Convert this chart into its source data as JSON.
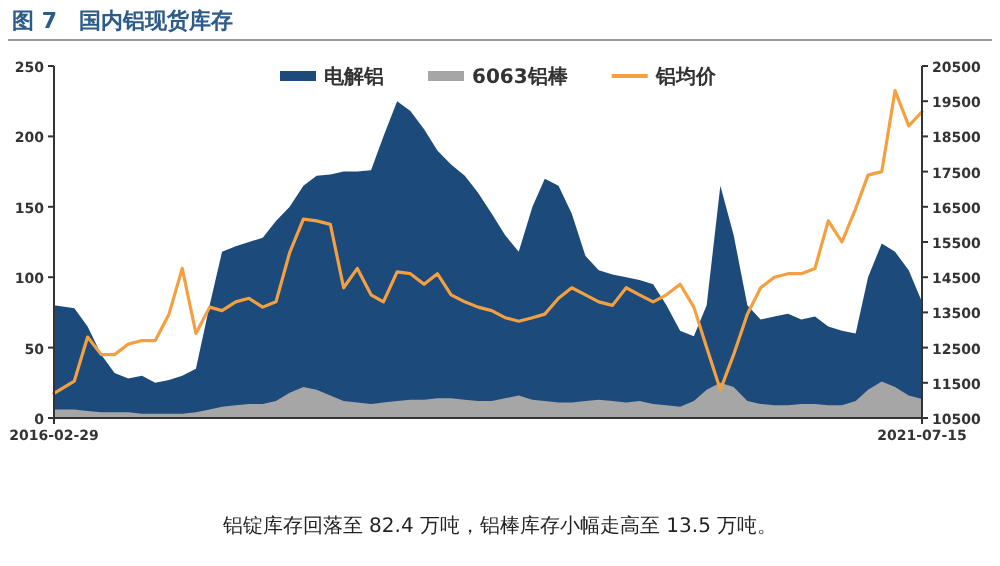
{
  "chart_data": {
    "type": "area",
    "title": "图 7　国内铝现货库存",
    "annotations": [
      "铝锭库存回落至 82.4 万吨，铝棒库存小幅走高至 13.5 万吨。"
    ],
    "x": [
      "2016-02-29",
      "2016-04-15",
      "2016-05-15",
      "2016-06-15",
      "2016-07-15",
      "2016-08-15",
      "2016-09-15",
      "2016-10-15",
      "2016-11-15",
      "2016-12-15",
      "2017-01-15",
      "2017-02-15",
      "2017-03-15",
      "2017-04-15",
      "2017-05-15",
      "2017-06-15",
      "2017-07-15",
      "2017-08-15",
      "2017-09-15",
      "2017-10-15",
      "2017-11-15",
      "2017-12-15",
      "2018-01-15",
      "2018-02-15",
      "2018-03-15",
      "2018-04-15",
      "2018-05-15",
      "2018-06-15",
      "2018-07-15",
      "2018-08-15",
      "2018-09-15",
      "2018-10-15",
      "2018-11-15",
      "2018-12-15",
      "2019-01-15",
      "2019-02-15",
      "2019-03-15",
      "2019-04-15",
      "2019-05-15",
      "2019-06-15",
      "2019-07-15",
      "2019-08-15",
      "2019-09-15",
      "2019-10-15",
      "2019-11-15",
      "2019-12-15",
      "2020-01-15",
      "2020-02-15",
      "2020-03-15",
      "2020-04-15",
      "2020-05-15",
      "2020-06-15",
      "2020-07-15",
      "2020-08-15",
      "2020-09-15",
      "2020-10-15",
      "2020-11-15",
      "2020-12-15",
      "2021-01-15",
      "2021-02-15",
      "2021-03-15",
      "2021-04-15",
      "2021-05-15",
      "2021-06-15",
      "2021-07-15"
    ],
    "series": [
      {
        "name": "电解铝",
        "color": "#1c4a7a",
        "values": [
          80,
          78,
          65,
          45,
          32,
          28,
          30,
          25,
          27,
          30,
          35,
          80,
          118,
          122,
          125,
          128,
          140,
          150,
          165,
          172,
          173,
          175,
          175,
          176,
          200,
          225,
          218,
          205,
          190,
          180,
          172,
          160,
          145,
          130,
          118,
          150,
          170,
          165,
          145,
          115,
          105,
          102,
          100,
          98,
          95,
          80,
          62,
          58,
          80,
          165,
          130,
          80,
          70,
          72,
          74,
          70,
          72,
          65,
          62,
          60,
          100,
          124,
          118,
          105,
          82.4
        ]
      },
      {
        "name": "6063铝棒",
        "color": "#a6a6a6",
        "values": [
          6,
          6,
          5,
          4,
          4,
          4,
          3,
          3,
          3,
          3,
          4,
          6,
          8,
          9,
          10,
          10,
          12,
          18,
          22,
          20,
          16,
          12,
          11,
          10,
          11,
          12,
          13,
          13,
          14,
          14,
          13,
          12,
          12,
          14,
          16,
          13,
          12,
          11,
          11,
          12,
          13,
          12,
          11,
          12,
          10,
          9,
          8,
          12,
          20,
          25,
          22,
          12,
          10,
          9,
          9,
          10,
          10,
          9,
          9,
          12,
          20,
          26,
          22,
          16,
          13.5
        ]
      },
      {
        "name": "铝均价",
        "color": "#f5a040",
        "type": "line",
        "axis": "y2",
        "values": [
          11200,
          11550,
          12800,
          12300,
          12300,
          12600,
          12700,
          12700,
          13450,
          14750,
          12900,
          13650,
          13550,
          13800,
          13900,
          13650,
          13800,
          15200,
          16150,
          16100,
          16000,
          14200,
          14750,
          14000,
          13800,
          14650,
          14600,
          14300,
          14600,
          14000,
          13800,
          13650,
          13550,
          13350,
          13250,
          13350,
          13450,
          13900,
          14200,
          14000,
          13800,
          13700,
          14200,
          14000,
          13800,
          14000,
          14300,
          13650,
          12500,
          11300,
          12300,
          13450,
          14200,
          14500,
          14600,
          14600,
          14750,
          16100,
          15500,
          16450,
          17400,
          17500,
          19800,
          18800,
          19200
        ]
      }
    ],
    "xlim": [
      "2016-02-29",
      "2021-07-15"
    ],
    "xticks": [
      "2016-02-29",
      "2021-07-15"
    ],
    "ylim": [
      0,
      250
    ],
    "yticks": [
      0,
      50,
      100,
      150,
      200,
      250
    ],
    "y2lim": [
      10500,
      20500
    ],
    "y2ticks": [
      10500,
      11500,
      12500,
      13500,
      14500,
      15500,
      16500,
      17500,
      18500,
      19500,
      20500
    ],
    "grid": false,
    "legend": "top"
  }
}
